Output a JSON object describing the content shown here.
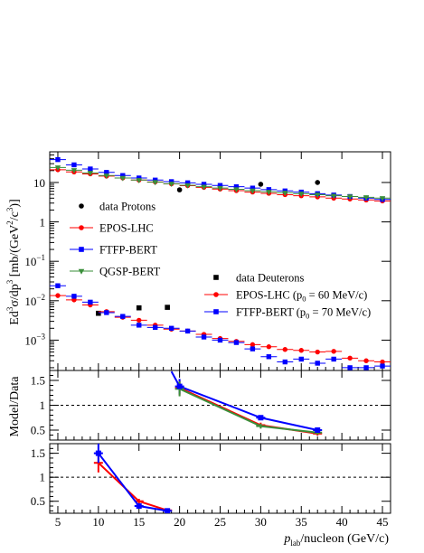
{
  "colors": {
    "data": "#000000",
    "epos": "#ff0000",
    "ftfp": "#0000ff",
    "qgsp": "#3a8f3a"
  },
  "chart_data": [
    {
      "panel": "top",
      "type": "scatter",
      "yscale": "log",
      "xlim": [
        4,
        46
      ],
      "ylim": [
        0.00017,
        60
      ],
      "ylabel_parts": {
        "a": "Ed",
        "b": "3",
        "c": "σ/dp",
        "d": "3",
        "e": " [mb/(GeV",
        "f": "2",
        "g": "/c",
        "h": "3",
        "i": ")]"
      },
      "xticks": [
        5,
        10,
        15,
        20,
        25,
        30,
        35,
        40,
        45
      ],
      "yticks": [
        {
          "value": 10,
          "base": "10",
          "exp": ""
        },
        {
          "value": 1,
          "base": "1",
          "exp": ""
        },
        {
          "value": 0.1,
          "base": "10",
          "exp": "−1"
        },
        {
          "value": 0.01,
          "base": "10",
          "exp": "−2"
        },
        {
          "value": 0.001,
          "base": "10",
          "exp": "−3"
        }
      ],
      "legend_protons": [
        {
          "label": "data Protons",
          "series": "data"
        },
        {
          "label": "EPOS-LHC",
          "series": "epos"
        },
        {
          "label": "FTFP-BERT",
          "series": "ftfp"
        },
        {
          "label": "QGSP-BERT",
          "series": "qgsp"
        }
      ],
      "legend_deuterons": [
        {
          "label": "data Deuterons",
          "series": "data"
        },
        {
          "label": "EPOS-LHC (p",
          "sub": "0",
          "tail": " = 60 MeV/c)",
          "series": "epos"
        },
        {
          "label": "FTFP-BERT (p",
          "sub": "0",
          "tail": " = 70 MeV/c)",
          "series": "ftfp"
        }
      ],
      "series": [
        {
          "name": "data Protons",
          "key": "data",
          "marker": "circle",
          "x": [
            20,
            30,
            37
          ],
          "y": [
            6.5,
            9.0,
            10.0
          ]
        },
        {
          "name": "data Deuterons",
          "key": "data",
          "marker": "square",
          "x": [
            10,
            15,
            18.5
          ],
          "y": [
            0.0048,
            0.0066,
            0.0068
          ]
        },
        {
          "name": "EPOS-LHC",
          "key": "epos",
          "marker": "circle",
          "x": [
            5,
            7,
            9,
            11,
            13,
            15,
            17,
            19,
            21,
            23,
            25,
            27,
            29,
            31,
            33,
            35,
            37,
            39,
            41,
            43,
            45
          ],
          "y": [
            21,
            18.5,
            16.5,
            14.5,
            13,
            11.5,
            10.3,
            9.2,
            8.3,
            7.5,
            6.8,
            6.2,
            5.7,
            5.3,
            4.9,
            4.6,
            4.3,
            4.0,
            3.8,
            3.6,
            3.4
          ]
        },
        {
          "name": "FTFP-BERT",
          "key": "ftfp",
          "marker": "square",
          "x": [
            5,
            7,
            9,
            11,
            13,
            15,
            17,
            19,
            21,
            23,
            25,
            27,
            29,
            31,
            33,
            35,
            37,
            39,
            41,
            43,
            45
          ],
          "y": [
            38,
            28,
            22,
            18,
            15,
            13,
            11.5,
            10.5,
            9.8,
            9.0,
            8.4,
            7.8,
            7.2,
            6.6,
            6.1,
            5.7,
            5.2,
            4.8,
            4.4,
            4.0,
            3.7
          ]
        },
        {
          "name": "QGSP-BERT",
          "key": "qgsp",
          "marker": "triangle",
          "x": [
            5,
            7,
            9,
            11,
            13,
            15,
            17,
            19,
            21,
            23,
            25,
            27,
            29,
            31,
            33,
            35,
            37,
            39,
            41,
            43,
            45
          ],
          "y": [
            24,
            20.5,
            17.5,
            15,
            13,
            11.5,
            10.2,
            9.3,
            8.5,
            7.8,
            7.2,
            6.7,
            6.2,
            5.8,
            5.5,
            5.2,
            4.9,
            4.6,
            4.4,
            4.2,
            4.0
          ]
        },
        {
          "name": "EPOS-LHC (p0 = 60 MeV/c)",
          "key": "epos",
          "marker": "circle",
          "x": [
            5,
            7,
            9,
            11,
            13,
            15,
            17,
            19,
            21,
            23,
            25,
            27,
            29,
            31,
            33,
            35,
            37,
            39,
            41,
            43,
            45
          ],
          "y": [
            0.0135,
            0.0105,
            0.0078,
            0.0053,
            0.0038,
            0.0032,
            0.0024,
            0.0019,
            0.0017,
            0.0014,
            0.0011,
            0.00093,
            0.00077,
            0.00068,
            0.00058,
            0.00055,
            0.0005,
            0.00052,
            0.00035,
            0.0003,
            0.00028
          ]
        },
        {
          "name": "FTFP-BERT (p0 = 70 MeV/c)",
          "key": "ftfp",
          "marker": "square",
          "x": [
            5,
            7,
            9,
            11,
            13,
            15,
            17,
            19,
            21,
            23,
            25,
            27,
            29,
            31,
            33,
            35,
            37,
            39,
            41,
            43,
            45
          ],
          "y": [
            0.024,
            0.013,
            0.0092,
            0.005,
            0.004,
            0.0024,
            0.0021,
            0.002,
            0.0017,
            0.0012,
            0.001,
            0.00087,
            0.0006,
            0.00038,
            0.00028,
            0.00033,
            0.00026,
            0.00033,
            0.0002,
            0.0002,
            0.00022
          ]
        }
      ]
    },
    {
      "panel": "middle",
      "type": "line",
      "ylabel": "Model/Data",
      "xlim": [
        4,
        46
      ],
      "ylim": [
        0.3,
        1.7
      ],
      "reference_line": 1,
      "yticks": [
        "0.5",
        "1",
        "1.5"
      ],
      "series": [
        {
          "name": "EPOS-LHC",
          "key": "epos",
          "x": [
            20,
            30,
            37
          ],
          "y": [
            1.35,
            0.6,
            0.43
          ],
          "err": [
            0.15,
            0.05,
            0.04
          ]
        },
        {
          "name": "FTFP-BERT",
          "key": "ftfp",
          "x": [
            19,
            20,
            30,
            37
          ],
          "y": [
            1.68,
            1.38,
            0.75,
            0.5
          ],
          "err": [
            0,
            0.15,
            0.05,
            0.04
          ]
        },
        {
          "name": "QGSP-BERT",
          "key": "qgsp",
          "x": [
            20,
            30,
            37
          ],
          "y": [
            1.33,
            0.58,
            0.45
          ],
          "err": [
            0.15,
            0.05,
            0.04
          ]
        }
      ]
    },
    {
      "panel": "bottom",
      "type": "line",
      "xlim": [
        4,
        46
      ],
      "ylim": [
        0.25,
        1.7
      ],
      "reference_line": 1,
      "yticks": [
        "0.5",
        "1",
        "1.5"
      ],
      "xticks": [
        "5",
        "10",
        "15",
        "20",
        "25",
        "30",
        "35",
        "40",
        "45"
      ],
      "xlabel_parts": {
        "p": "p",
        "sub": "lab",
        "rest": "/nucleon (GeV/c)"
      },
      "series": [
        {
          "name": "EPOS-LHC",
          "key": "epos",
          "x": [
            10,
            15,
            18.5
          ],
          "y": [
            1.3,
            0.5,
            0.31
          ],
          "err": [
            0.2,
            0.05,
            0.03
          ]
        },
        {
          "name": "FTFP-BERT",
          "key": "ftfp",
          "x": [
            10,
            15,
            18.5
          ],
          "y": [
            1.5,
            0.4,
            0.3
          ],
          "err": [
            0.2,
            0.05,
            0.03
          ]
        }
      ]
    }
  ]
}
